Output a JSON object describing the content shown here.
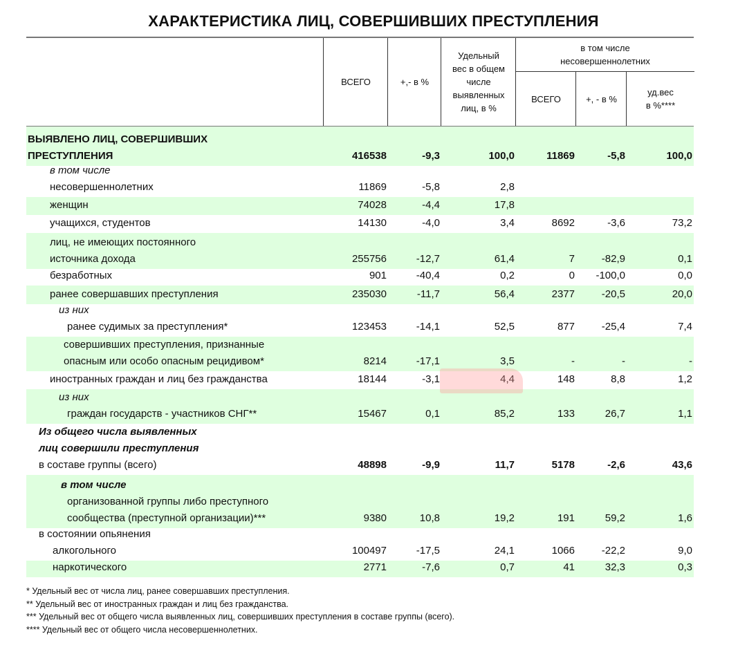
{
  "title": "ХАРАКТЕРИСТИКА ЛИЦ, СОВЕРШИВШИХ ПРЕСТУПЛЕНИЯ",
  "header": {
    "total": "ВСЕГО",
    "change": "+,- в %",
    "share": [
      "Удельный",
      "вес  в общем",
      "числе",
      "выявленных",
      "лиц, в %"
    ],
    "minors_group": [
      "в том числе",
      "несовершеннолетних"
    ],
    "minors_total": "ВСЕГО",
    "minors_change": "+, - в %",
    "minors_share": [
      "уд.вес",
      "в %****"
    ]
  },
  "colors": {
    "row_highlight": "#dfffdf",
    "marker": "#ffb4b4"
  },
  "rows": [
    {
      "lines": [
        {
          "t": "ВЫЯВЛЕНО ЛИЦ, СОВЕРШИВШИХ",
          "s": "b",
          "i": 0
        },
        {
          "t": "ПРЕСТУПЛЕНИЯ",
          "s": "b",
          "i": 0
        }
      ],
      "values": [
        "416538",
        "-9,3",
        "100,0",
        "11869",
        "-5,8",
        "100,0"
      ],
      "green": true,
      "bold": true
    },
    {
      "lines": [
        {
          "t": "в том числе",
          "s": "it",
          "i": 32
        },
        {
          "t": "несовершеннолетних",
          "s": "",
          "i": 32
        }
      ],
      "values": [
        "11869",
        "-5,8",
        "2,8",
        "",
        "",
        ""
      ]
    },
    {
      "lines": [
        {
          "t": "женщин",
          "s": "",
          "i": 32
        }
      ],
      "values": [
        "74028",
        "-4,4",
        "17,8",
        "",
        "",
        ""
      ],
      "green": true
    },
    {
      "lines": [
        {
          "t": "учащихся, студентов",
          "s": "",
          "i": 32
        }
      ],
      "values": [
        "14130",
        "-4,0",
        "3,4",
        "8692",
        "-3,6",
        "73,2"
      ]
    },
    {
      "lines": [
        {
          "t": "лиц, не имеющих постоянного",
          "s": "",
          "i": 32
        },
        {
          "t": "источника дохода",
          "s": "",
          "i": 32
        }
      ],
      "values": [
        "255756",
        "-12,7",
        "61,4",
        "7",
        "-82,9",
        "0,1"
      ],
      "green": true
    },
    {
      "lines": [
        {
          "t": "безработных",
          "s": "",
          "i": 32
        }
      ],
      "values": [
        "901",
        "-40,4",
        "0,2",
        "0",
        "-100,0",
        "0,0"
      ]
    },
    {
      "lines": [
        {
          "t": "ранее совершавших преступления",
          "s": "",
          "i": 32
        }
      ],
      "values": [
        "235030",
        "-11,7",
        "56,4",
        "2377",
        "-20,5",
        "20,0"
      ],
      "green": true
    },
    {
      "lines": [
        {
          "t": "из них",
          "s": "it",
          "i": 45
        },
        {
          "t": "ранее судимых за преступления*",
          "s": "",
          "i": 57
        }
      ],
      "values": [
        "123453",
        "-14,1",
        "52,5",
        "877",
        "-25,4",
        "7,4"
      ]
    },
    {
      "lines": [
        {
          "t": "совершивших преступления, признанные",
          "s": "",
          "i": 52
        },
        {
          "t": "опасным или особо опасным рецидивом*",
          "s": "",
          "i": 52
        }
      ],
      "values": [
        "8214",
        "-17,1",
        "3,5",
        "-",
        "-",
        "-"
      ],
      "green": true
    },
    {
      "lines": [
        {
          "t": "иностранных граждан и лиц без гражданства",
          "s": "",
          "i": 32
        }
      ],
      "values": [
        "18144",
        "-3,1",
        "4,4",
        "148",
        "8,8",
        "1,2"
      ]
    },
    {
      "lines": [
        {
          "t": "из них",
          "s": "it",
          "i": 45
        },
        {
          "t": "граждан государств - участников СНГ**",
          "s": "",
          "i": 57
        }
      ],
      "values": [
        "15467",
        "0,1",
        "85,2",
        "133",
        "26,7",
        "1,1"
      ],
      "green": true
    },
    {
      "lines": [
        {
          "t": "Из общего числа выявленных",
          "s": "bi",
          "i": 16
        },
        {
          "t": "лиц совершили преступления",
          "s": "bi",
          "i": 16
        },
        {
          "t": "в составе группы  (всего)",
          "s": "",
          "i": 16
        }
      ],
      "values": [
        "48898",
        "-9,9",
        "11,7",
        "5178",
        "-2,6",
        "43,6"
      ],
      "bold": true
    },
    {
      "lines": [
        {
          "t": "в том числе",
          "s": "bi",
          "i": 48
        },
        {
          "t": "организованной группы либо преступного",
          "s": "",
          "i": 57
        },
        {
          "t": "сообщества (преступной организации)***",
          "s": "",
          "i": 57
        }
      ],
      "values": [
        "9380",
        "10,8",
        "19,2",
        "191",
        "59,2",
        "1,6"
      ],
      "green": true
    },
    {
      "lines": [
        {
          "t": "в состоянии опьянения",
          "s": "",
          "i": 16
        },
        {
          "t": "алкогольного",
          "s": "",
          "i": 36
        }
      ],
      "values": [
        "100497",
        "-17,5",
        "24,1",
        "1066",
        "-22,2",
        "9,0"
      ]
    },
    {
      "lines": [
        {
          "t": "наркотического",
          "s": "",
          "i": 36
        }
      ],
      "values": [
        "2771",
        "-7,6",
        "0,7",
        "41",
        "32,3",
        "0,3"
      ],
      "green": true
    }
  ],
  "footnotes": [
    "* Удельный вес от числа лиц, ранее совершавших  преступления.",
    "** Удельный вес от иностранных граждан и лиц без гражданства.",
    "*** Удельный вес от общего числа выявленных лиц, совершивших преступления в составе группы (всего).",
    "**** Удельный вес от общего числа несовершеннолетних."
  ]
}
